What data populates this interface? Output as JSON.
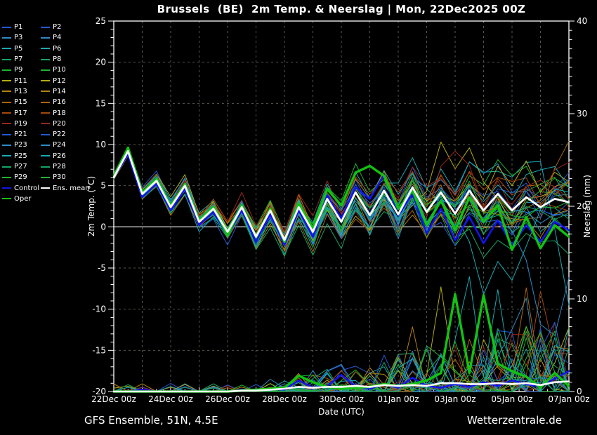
{
  "header": {
    "title": "Brussels  (BE)  2m Temp. & Neerslag | Mon, 22Dec2025 00Z"
  },
  "footer": {
    "left": "GFS Ensemble, 51N, 4.5E",
    "right": "Wetterzentrale.de"
  },
  "legend": {
    "members": [
      {
        "label": "P1",
        "color": "#2458d2"
      },
      {
        "label": "P2",
        "color": "#2458d2"
      },
      {
        "label": "P3",
        "color": "#2e8ac8"
      },
      {
        "label": "P4",
        "color": "#2e8ac8"
      },
      {
        "label": "P5",
        "color": "#17aab4"
      },
      {
        "label": "P6",
        "color": "#17aab4"
      },
      {
        "label": "P7",
        "color": "#14a565"
      },
      {
        "label": "P8",
        "color": "#14a565"
      },
      {
        "label": "P9",
        "color": "#1eb42d"
      },
      {
        "label": "P10",
        "color": "#1eb42d"
      },
      {
        "label": "P11",
        "color": "#b4ac12"
      },
      {
        "label": "P12",
        "color": "#b4ac12"
      },
      {
        "label": "P13",
        "color": "#b2830f"
      },
      {
        "label": "P14",
        "color": "#b2830f"
      },
      {
        "label": "P15",
        "color": "#ae650d"
      },
      {
        "label": "P16",
        "color": "#ae650d"
      },
      {
        "label": "P17",
        "color": "#a6480c"
      },
      {
        "label": "P18",
        "color": "#a6480c"
      },
      {
        "label": "P19",
        "color": "#96281b"
      },
      {
        "label": "P20",
        "color": "#96281b"
      },
      {
        "label": "P21",
        "color": "#2458d2"
      },
      {
        "label": "P22",
        "color": "#2458d2"
      },
      {
        "label": "P23",
        "color": "#2e8ac8"
      },
      {
        "label": "P24",
        "color": "#2e8ac8"
      },
      {
        "label": "P25",
        "color": "#17aab4"
      },
      {
        "label": "P26",
        "color": "#17aab4"
      },
      {
        "label": "P27",
        "color": "#14a565"
      },
      {
        "label": "P28",
        "color": "#14a565"
      },
      {
        "label": "P29",
        "color": "#1eb42d"
      },
      {
        "label": "P30",
        "color": "#1eb42d"
      }
    ],
    "control": {
      "label": "Control",
      "color": "#1414ee"
    },
    "mean": {
      "label": "Ens. mean",
      "color": "#ffffff"
    },
    "oper": {
      "label": "Oper",
      "color": "#12c212"
    }
  },
  "chart_data": {
    "type": "line",
    "title": "Brussels  (BE)  2m Temp. & Neerslag | Mon, 22Dec2025 00Z",
    "xlabel": "Date (UTC)",
    "ylabel_left": "2m Temp. (°C)",
    "ylabel_right": "Neerslag (mm)",
    "x_range_days": [
      0,
      16
    ],
    "x_ticks": {
      "days": [
        0,
        2,
        4,
        6,
        8,
        10,
        12,
        14,
        16
      ],
      "labels": [
        "22Dec 00z",
        "24Dec 00z",
        "26Dec 00z",
        "28Dec 00z",
        "30Dec 00z",
        "01Jan 00z",
        "03Jan 00z",
        "05Jan 00z",
        "07Jan 00z"
      ]
    },
    "y_left": {
      "range": [
        -20,
        25
      ],
      "ticks": [
        25,
        20,
        15,
        10,
        5,
        0,
        -5,
        -10,
        -15,
        -20
      ]
    },
    "y_right": {
      "range": [
        0,
        40
      ],
      "ticks": [
        40,
        30,
        20,
        10,
        0
      ]
    },
    "grid": {
      "vertical_every_days": 1,
      "horizontal_every_degC": 5,
      "zero_line_degC": 0
    },
    "sample_interval_hours": 12,
    "series": {
      "ens_mean": {
        "temp": [
          6.0,
          9.2,
          4.0,
          5.6,
          2.4,
          5.0,
          0.6,
          2.2,
          -0.6,
          2.4,
          -1.2,
          2.0,
          -1.6,
          2.4,
          -0.6,
          3.4,
          0.6,
          4.2,
          1.4,
          4.4,
          1.5,
          4.8,
          1.8,
          4.2,
          1.6,
          4.4,
          2.0,
          4.0,
          2.0,
          3.6,
          2.4,
          3.4,
          3.0
        ],
        "precip": [
          0,
          0,
          0,
          0,
          0,
          0,
          0,
          0,
          0,
          0.1,
          0.1,
          0.2,
          0.3,
          0.5,
          0.4,
          0.5,
          0.5,
          0.6,
          0.5,
          0.7,
          0.6,
          0.7,
          0.6,
          0.9,
          0.9,
          0.8,
          0.8,
          0.9,
          0.8,
          0.9,
          0.7,
          1.0,
          1.1
        ]
      },
      "control": {
        "temp": [
          6.0,
          8.8,
          3.6,
          5.2,
          2.0,
          4.6,
          0.2,
          1.8,
          -1.0,
          2.0,
          -1.8,
          1.6,
          -2.2,
          2.0,
          -1.2,
          3.8,
          1.0,
          4.8,
          3.4,
          6.3,
          1.4,
          4.0,
          -0.8,
          2.2,
          -1.6,
          1.2,
          -2.0,
          0.8,
          -2.2,
          0.2,
          -1.8,
          0.6,
          -0.4
        ],
        "precip": [
          0,
          0,
          0.2,
          0,
          0,
          0,
          0,
          0,
          0,
          0.2,
          0.1,
          0.3,
          0.2,
          1.2,
          0.4,
          0.6,
          1.8,
          0.5,
          0.3,
          0.8,
          0.4,
          1.5,
          0.6,
          0.4,
          0.8,
          0.5,
          1.0,
          0.6,
          1.2,
          0.8,
          0.5,
          1.4,
          2.2
        ]
      },
      "oper": {
        "temp": [
          6.2,
          9.6,
          4.2,
          5.8,
          2.6,
          5.2,
          0.8,
          2.4,
          -1.0,
          2.6,
          -1.2,
          2.2,
          -1.8,
          2.8,
          -0.2,
          4.6,
          2.6,
          6.6,
          7.4,
          6.2,
          2.2,
          4.4,
          0.2,
          3.2,
          -0.4,
          3.6,
          0.6,
          2.6,
          -2.8,
          1.2,
          -2.6,
          0.2,
          -1.2
        ],
        "precip": [
          0,
          0,
          0,
          0,
          0,
          0,
          0,
          0,
          0,
          0.1,
          0.2,
          0.3,
          0.4,
          1.7,
          1.0,
          0.5,
          0.3,
          0.4,
          0.5,
          0.8,
          0.6,
          0.8,
          1.2,
          2.0,
          10.5,
          2.0,
          10.4,
          3.0,
          2.2,
          1.6,
          0.4,
          2.0,
          0.6
        ]
      }
    },
    "ensemble": {
      "member_count": 30,
      "seed": 20251222,
      "spread_envelope_degC": {
        "days": [
          0,
          2,
          4,
          6,
          8,
          10,
          12,
          14,
          16
        ],
        "spread": [
          0.35,
          1.0,
          1.5,
          2.0,
          2.7,
          3.3,
          4.0,
          4.5,
          5.0
        ]
      },
      "temp_outliers": [
        {
          "m": 10,
          "i": 23,
          "v": 10.3
        },
        {
          "m": 10,
          "i": 25,
          "v": 9.6
        },
        {
          "m": 18,
          "i": 24,
          "v": 9.2
        },
        {
          "m": 5,
          "i": 21,
          "v": 8.4
        },
        {
          "m": 14,
          "i": 32,
          "v": 10.4
        },
        {
          "m": 24,
          "i": 26,
          "v": -8.2
        },
        {
          "m": 24,
          "i": 28,
          "v": -6.5
        },
        {
          "m": 22,
          "i": 30,
          "v": -10.5
        },
        {
          "m": 22,
          "i": 31,
          "v": -13.2
        },
        {
          "m": 4,
          "i": 32,
          "v": -9.5
        }
      ],
      "precip_outliers": [
        {
          "m": 10,
          "i": 23,
          "v": 11.3
        },
        {
          "m": 24,
          "i": 25,
          "v": 12.4
        },
        {
          "m": 24,
          "i": 27,
          "v": 11.0
        },
        {
          "m": 6,
          "i": 27,
          "v": 6.8
        },
        {
          "m": 14,
          "i": 29,
          "v": 11.2
        },
        {
          "m": 16,
          "i": 30,
          "v": 10.8
        },
        {
          "m": 28,
          "i": 29,
          "v": 7.0
        },
        {
          "m": 14,
          "i": 32,
          "v": 4.6
        }
      ]
    }
  }
}
